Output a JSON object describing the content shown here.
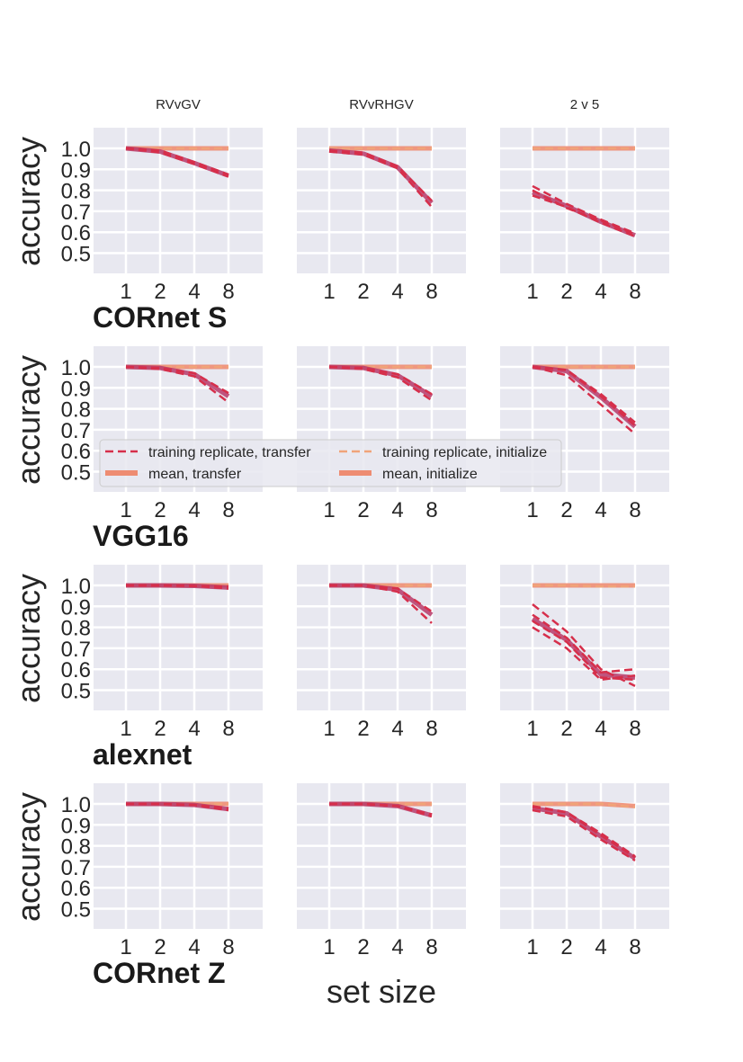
{
  "figure": {
    "xlabel": "set size",
    "ylabel": "accuracy",
    "column_titles": [
      "RVvGV",
      "RVvRHGV",
      "2 v 5"
    ],
    "row_titles": [
      "CORnet S",
      "VGG16",
      "alexnet",
      "CORnet Z"
    ],
    "colors": {
      "transfer": "#d62f4b",
      "transfer_mean": "#b73a6a",
      "initialize": "#f0a479",
      "initialize_mean": "#ee8c72",
      "panel_bg": "#e8e8f0",
      "grid": "#ffffff"
    }
  },
  "legend": {
    "placement": "center",
    "items": [
      {
        "label": "training replicate, transfer",
        "style": "dashed",
        "color": "transfer"
      },
      {
        "label": "training replicate, initialize",
        "style": "dashed",
        "color": "initialize"
      },
      {
        "label": "mean, transfer",
        "style": "solid",
        "color": "transfer_mean"
      },
      {
        "label": "mean, initialize",
        "style": "solid",
        "color": "initialize_mean"
      }
    ]
  },
  "chart_data": [
    {
      "type": "line",
      "row": "CORnet S",
      "column": "RVvGV",
      "x": [
        1,
        2,
        4,
        8
      ],
      "xticks": [
        1,
        2,
        4,
        8
      ],
      "xscale": "log2",
      "yticks": [
        0.5,
        0.6,
        0.7,
        0.8,
        0.9,
        1.0
      ],
      "ylim": [
        0.4,
        1.1
      ],
      "ylabel": "accuracy",
      "series": [
        {
          "name": "mean, transfer",
          "values": [
            1.0,
            0.985,
            0.93,
            0.87
          ]
        },
        {
          "name": "training replicate, transfer",
          "values": [
            [
              1.0,
              0.99,
              0.935,
              0.875
            ],
            [
              1.0,
              0.98,
              0.925,
              0.865
            ]
          ]
        },
        {
          "name": "mean, initialize",
          "values": [
            1.0,
            1.0,
            1.0,
            1.0
          ]
        },
        {
          "name": "training replicate, initialize",
          "values": [
            [
              1.0,
              1.0,
              1.0,
              1.0
            ]
          ]
        }
      ]
    },
    {
      "type": "line",
      "row": "CORnet S",
      "column": "RVvRHGV",
      "x": [
        1,
        2,
        4,
        8
      ],
      "xticks": [
        1,
        2,
        4,
        8
      ],
      "xscale": "log2",
      "yticks": [
        0.5,
        0.6,
        0.7,
        0.8,
        0.9,
        1.0
      ],
      "ylim": [
        0.4,
        1.1
      ],
      "series": [
        {
          "name": "mean, transfer",
          "values": [
            0.99,
            0.975,
            0.91,
            0.74
          ]
        },
        {
          "name": "training replicate, transfer",
          "values": [
            [
              0.99,
              0.98,
              0.915,
              0.75
            ],
            [
              0.985,
              0.97,
              0.905,
              0.72
            ]
          ]
        },
        {
          "name": "mean, initialize",
          "values": [
            1.0,
            1.0,
            1.0,
            1.0
          ]
        },
        {
          "name": "training replicate, initialize",
          "values": [
            [
              1.0,
              1.0,
              1.0,
              1.0
            ]
          ]
        }
      ]
    },
    {
      "type": "line",
      "row": "CORnet S",
      "column": "2 v 5",
      "x": [
        1,
        2,
        4,
        8
      ],
      "xticks": [
        1,
        2,
        4,
        8
      ],
      "xscale": "log2",
      "yticks": [
        0.5,
        0.6,
        0.7,
        0.8,
        0.9,
        1.0
      ],
      "ylim": [
        0.4,
        1.1
      ],
      "series": [
        {
          "name": "mean, transfer",
          "values": [
            0.79,
            0.725,
            0.65,
            0.585
          ]
        },
        {
          "name": "training replicate, transfer",
          "values": [
            [
              0.82,
              0.735,
              0.66,
              0.595
            ],
            [
              0.775,
              0.72,
              0.645,
              0.58
            ],
            [
              0.8,
              0.715,
              0.655,
              0.59
            ]
          ]
        },
        {
          "name": "mean, initialize",
          "values": [
            1.0,
            1.0,
            1.0,
            1.0
          ]
        },
        {
          "name": "training replicate, initialize",
          "values": [
            [
              1.0,
              1.0,
              1.0,
              1.0
            ]
          ]
        }
      ]
    },
    {
      "type": "line",
      "row": "VGG16",
      "column": "RVvGV",
      "x": [
        1,
        2,
        4,
        8
      ],
      "xticks": [
        1,
        2,
        4,
        8
      ],
      "xscale": "log2",
      "yticks": [
        0.5,
        0.6,
        0.7,
        0.8,
        0.9,
        1.0
      ],
      "ylim": [
        0.4,
        1.1
      ],
      "ylabel": "accuracy",
      "series": [
        {
          "name": "mean, transfer",
          "values": [
            1.0,
            0.995,
            0.965,
            0.86
          ]
        },
        {
          "name": "training replicate, transfer",
          "values": [
            [
              1.0,
              0.995,
              0.97,
              0.875
            ],
            [
              1.0,
              0.99,
              0.955,
              0.83
            ]
          ]
        },
        {
          "name": "mean, initialize",
          "values": [
            1.0,
            1.0,
            1.0,
            1.0
          ]
        },
        {
          "name": "training replicate, initialize",
          "values": [
            [
              1.0,
              1.0,
              1.0,
              1.0
            ]
          ]
        }
      ]
    },
    {
      "type": "line",
      "row": "VGG16",
      "column": "RVvRHGV",
      "x": [
        1,
        2,
        4,
        8
      ],
      "xticks": [
        1,
        2,
        4,
        8
      ],
      "xscale": "log2",
      "yticks": [
        0.5,
        0.6,
        0.7,
        0.8,
        0.9,
        1.0
      ],
      "ylim": [
        0.4,
        1.1
      ],
      "series": [
        {
          "name": "mean, transfer",
          "values": [
            1.0,
            0.995,
            0.96,
            0.86
          ]
        },
        {
          "name": "training replicate, transfer",
          "values": [
            [
              1.0,
              0.995,
              0.965,
              0.87
            ],
            [
              1.0,
              0.99,
              0.95,
              0.84
            ]
          ]
        },
        {
          "name": "mean, initialize",
          "values": [
            1.0,
            1.0,
            1.0,
            1.0
          ]
        },
        {
          "name": "training replicate, initialize",
          "values": [
            [
              1.0,
              1.0,
              1.0,
              1.0
            ]
          ]
        }
      ]
    },
    {
      "type": "line",
      "row": "VGG16",
      "column": "2 v 5",
      "x": [
        1,
        2,
        4,
        8
      ],
      "xticks": [
        1,
        2,
        4,
        8
      ],
      "xscale": "log2",
      "yticks": [
        0.5,
        0.6,
        0.7,
        0.8,
        0.9,
        1.0
      ],
      "ylim": [
        0.4,
        1.1
      ],
      "series": [
        {
          "name": "mean, transfer",
          "values": [
            1.0,
            0.98,
            0.855,
            0.715
          ]
        },
        {
          "name": "training replicate, transfer",
          "values": [
            [
              1.0,
              0.985,
              0.87,
              0.735
            ],
            [
              1.0,
              0.96,
              0.82,
              0.68
            ],
            [
              1.0,
              0.985,
              0.86,
              0.72
            ]
          ]
        },
        {
          "name": "mean, initialize",
          "values": [
            1.0,
            1.0,
            1.0,
            1.0
          ]
        },
        {
          "name": "training replicate, initialize",
          "values": [
            [
              1.0,
              1.0,
              1.0,
              1.0
            ]
          ]
        }
      ]
    },
    {
      "type": "line",
      "row": "alexnet",
      "column": "RVvGV",
      "x": [
        1,
        2,
        4,
        8
      ],
      "xticks": [
        1,
        2,
        4,
        8
      ],
      "xscale": "log2",
      "yticks": [
        0.5,
        0.6,
        0.7,
        0.8,
        0.9,
        1.0
      ],
      "ylim": [
        0.4,
        1.1
      ],
      "ylabel": "accuracy",
      "series": [
        {
          "name": "mean, transfer",
          "values": [
            1.0,
            1.0,
            0.998,
            0.99
          ]
        },
        {
          "name": "training replicate, transfer",
          "values": [
            [
              1.0,
              1.0,
              0.998,
              0.985
            ],
            [
              1.0,
              1.0,
              0.997,
              0.995
            ]
          ]
        },
        {
          "name": "mean, initialize",
          "values": [
            1.0,
            1.0,
            1.0,
            1.0
          ]
        },
        {
          "name": "training replicate, initialize",
          "values": [
            [
              1.0,
              1.0,
              1.0,
              1.0
            ]
          ]
        }
      ]
    },
    {
      "type": "line",
      "row": "alexnet",
      "column": "RVvRHGV",
      "x": [
        1,
        2,
        4,
        8
      ],
      "xticks": [
        1,
        2,
        4,
        8
      ],
      "xscale": "log2",
      "yticks": [
        0.5,
        0.6,
        0.7,
        0.8,
        0.9,
        1.0
      ],
      "ylim": [
        0.4,
        1.1
      ],
      "series": [
        {
          "name": "mean, transfer",
          "values": [
            1.0,
            1.0,
            0.98,
            0.86
          ]
        },
        {
          "name": "training replicate, transfer",
          "values": [
            [
              1.0,
              1.0,
              0.985,
              0.875
            ],
            [
              1.0,
              1.0,
              0.97,
              0.82
            ]
          ]
        },
        {
          "name": "mean, initialize",
          "values": [
            1.0,
            1.0,
            1.0,
            1.0
          ]
        },
        {
          "name": "training replicate, initialize",
          "values": [
            [
              1.0,
              1.0,
              1.0,
              1.0
            ]
          ]
        }
      ]
    },
    {
      "type": "line",
      "row": "alexnet",
      "column": "2 v 5",
      "x": [
        1,
        2,
        4,
        8
      ],
      "xticks": [
        1,
        2,
        4,
        8
      ],
      "xscale": "log2",
      "yticks": [
        0.5,
        0.6,
        0.7,
        0.8,
        0.9,
        1.0
      ],
      "ylim": [
        0.4,
        1.1
      ],
      "series": [
        {
          "name": "mean, transfer",
          "values": [
            0.84,
            0.74,
            0.575,
            0.56
          ]
        },
        {
          "name": "training replicate, transfer",
          "values": [
            [
              0.91,
              0.78,
              0.6,
              0.52
            ],
            [
              0.8,
              0.7,
              0.55,
              0.57
            ],
            [
              0.86,
              0.75,
              0.585,
              0.6
            ],
            [
              0.83,
              0.73,
              0.56,
              0.55
            ]
          ]
        },
        {
          "name": "mean, initialize",
          "values": [
            1.0,
            1.0,
            1.0,
            1.0
          ]
        },
        {
          "name": "training replicate, initialize",
          "values": [
            [
              1.0,
              1.0,
              0.995,
              0.995
            ]
          ]
        }
      ]
    },
    {
      "type": "line",
      "row": "CORnet Z",
      "column": "RVvGV",
      "x": [
        1,
        2,
        4,
        8
      ],
      "xticks": [
        1,
        2,
        4,
        8
      ],
      "xscale": "log2",
      "yticks": [
        0.5,
        0.6,
        0.7,
        0.8,
        0.9,
        1.0
      ],
      "ylim": [
        0.4,
        1.1
      ],
      "ylabel": "accuracy",
      "series": [
        {
          "name": "mean, transfer",
          "values": [
            1.0,
            1.0,
            0.995,
            0.975
          ]
        },
        {
          "name": "training replicate, transfer",
          "values": [
            [
              1.0,
              1.0,
              0.995,
              0.97
            ],
            [
              1.0,
              1.0,
              0.995,
              0.98
            ]
          ]
        },
        {
          "name": "mean, initialize",
          "values": [
            1.0,
            1.0,
            1.0,
            1.0
          ]
        },
        {
          "name": "training replicate, initialize",
          "values": [
            [
              1.0,
              1.0,
              1.0,
              1.0
            ]
          ]
        }
      ]
    },
    {
      "type": "line",
      "row": "CORnet Z",
      "column": "RVvRHGV",
      "x": [
        1,
        2,
        4,
        8
      ],
      "xticks": [
        1,
        2,
        4,
        8
      ],
      "xscale": "log2",
      "yticks": [
        0.5,
        0.6,
        0.7,
        0.8,
        0.9,
        1.0
      ],
      "ylim": [
        0.4,
        1.1
      ],
      "series": [
        {
          "name": "mean, transfer",
          "values": [
            1.0,
            1.0,
            0.99,
            0.945
          ]
        },
        {
          "name": "training replicate, transfer",
          "values": [
            [
              1.0,
              1.0,
              0.99,
              0.94
            ],
            [
              1.0,
              1.0,
              0.99,
              0.95
            ]
          ]
        },
        {
          "name": "mean, initialize",
          "values": [
            1.0,
            1.0,
            1.0,
            1.0
          ]
        },
        {
          "name": "training replicate, initialize",
          "values": [
            [
              1.0,
              1.0,
              1.0,
              1.0
            ]
          ]
        }
      ]
    },
    {
      "type": "line",
      "row": "CORnet Z",
      "column": "2 v 5",
      "x": [
        1,
        2,
        4,
        8
      ],
      "xticks": [
        1,
        2,
        4,
        8
      ],
      "xscale": "log2",
      "yticks": [
        0.5,
        0.6,
        0.7,
        0.8,
        0.9,
        1.0
      ],
      "ylim": [
        0.4,
        1.1
      ],
      "series": [
        {
          "name": "mean, transfer",
          "values": [
            0.98,
            0.955,
            0.845,
            0.74
          ]
        },
        {
          "name": "training replicate, transfer",
          "values": [
            [
              0.99,
              0.96,
              0.86,
              0.75
            ],
            [
              0.97,
              0.94,
              0.83,
              0.73
            ],
            [
              0.985,
              0.96,
              0.85,
              0.745
            ]
          ]
        },
        {
          "name": "mean, initialize",
          "values": [
            1.0,
            1.0,
            1.0,
            0.99
          ]
        },
        {
          "name": "training replicate, initialize",
          "values": [
            [
              1.0,
              1.0,
              1.0,
              0.985
            ]
          ]
        }
      ]
    }
  ]
}
